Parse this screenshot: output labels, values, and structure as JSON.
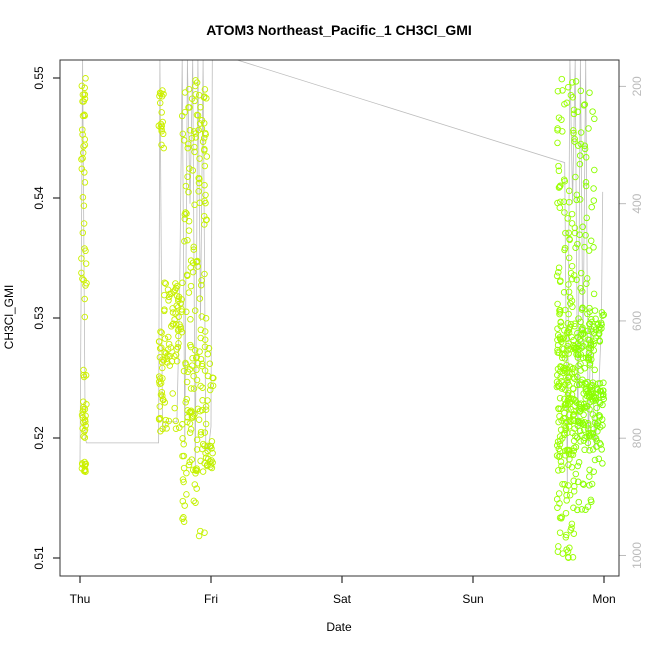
{
  "chart_data": {
    "type": "scatter",
    "title": "ATOM3 Northeast_Pacific_1 CH3Cl_GMI",
    "xlabel": "Date",
    "ylabel": "CH3Cl_GMI",
    "x_ticks": [
      "Thu",
      "Fri",
      "Sat",
      "Sun",
      "Mon"
    ],
    "ylim": [
      0.5085,
      0.5515
    ],
    "y_ticks": [
      0.51,
      0.52,
      0.53,
      0.54,
      0.55
    ],
    "y_tick_labels": [
      "0.51",
      "0.52",
      "0.53",
      "0.54",
      "0.55"
    ],
    "y2_label": "",
    "y2lim": [
      1035,
      155
    ],
    "y2_ticks": [
      200,
      400,
      600,
      800,
      1000
    ],
    "y2_tick_labels": [
      "200",
      "400",
      "600",
      "800",
      "1000"
    ],
    "grid": false,
    "legend": "none",
    "colors": {
      "marker_early": "#ccf000",
      "marker_late": "#88ff00",
      "altitude_line": "#bdbdbd",
      "frame": "#333333",
      "right_axis": "#bbbbbb"
    },
    "series": [
      {
        "marker": "open-circle",
        "segments": [
          {
            "x_start_day": 0.01,
            "x_end_day": 0.05,
            "y_min": 0.517,
            "y_max": 0.55,
            "color": "#ccf000",
            "clusters": [
              [
                0.517,
                0.518,
                12
              ],
              [
                0.52,
                0.526,
                22
              ],
              [
                0.526,
                0.54,
                14
              ],
              [
                0.54,
                0.55,
                24
              ]
            ]
          },
          {
            "x_start_day": 0.6,
            "x_end_day": 0.64,
            "y_min": 0.5205,
            "y_max": 0.549,
            "color": "#ccf000",
            "clusters": [
              [
                0.5205,
                0.529,
                28
              ],
              [
                0.544,
                0.549,
                18
              ]
            ]
          },
          {
            "x_start_day": 0.64,
            "x_end_day": 0.78,
            "y_min": 0.5205,
            "y_max": 0.533,
            "color": "#c8f000",
            "clusters": [
              [
                0.526,
                0.533,
                60
              ],
              [
                0.5205,
                0.524,
                10
              ]
            ]
          },
          {
            "x_start_day": 0.78,
            "x_end_day": 0.97,
            "y_min": 0.5115,
            "y_max": 0.55,
            "color": "#c4f200",
            "clusters": [
              [
                0.517,
                0.528,
                80
              ],
              [
                0.528,
                0.544,
                60
              ],
              [
                0.544,
                0.55,
                40
              ],
              [
                0.5115,
                0.517,
                15
              ]
            ]
          },
          {
            "x_start_day": 0.97,
            "x_end_day": 1.02,
            "y_min": 0.5175,
            "y_max": 0.528,
            "color": "#c0f000",
            "clusters": [
              [
                0.5175,
                0.52,
                16
              ],
              [
                0.523,
                0.528,
                10
              ]
            ]
          },
          {
            "x_start_day": 3.64,
            "x_end_day": 3.78,
            "y_min": 0.51,
            "y_max": 0.55,
            "color": "#99ff00",
            "clusters": [
              [
                0.518,
                0.53,
                160
              ],
              [
                0.51,
                0.518,
                40
              ],
              [
                0.53,
                0.55,
                70
              ]
            ]
          },
          {
            "x_start_day": 3.78,
            "x_end_day": 3.93,
            "y_min": 0.514,
            "y_max": 0.55,
            "color": "#8cff00",
            "clusters": [
              [
                0.52,
                0.53,
                140
              ],
              [
                0.514,
                0.52,
                25
              ],
              [
                0.53,
                0.55,
                50
              ]
            ]
          },
          {
            "x_start_day": 3.93,
            "x_end_day": 4.0,
            "y_min": 0.5175,
            "y_max": 0.531,
            "color": "#86ff00",
            "clusters": [
              [
                0.5175,
                0.525,
                40
              ],
              [
                0.528,
                0.531,
                18
              ]
            ]
          }
        ]
      },
      {
        "name": "",
        "type": "line",
        "axis": "right",
        "points_day_altitude": [
          [
            0.0,
            840
          ],
          [
            0.02,
            130
          ],
          [
            0.04,
            800
          ],
          [
            0.05,
            808
          ],
          [
            0.6,
            808
          ],
          [
            0.61,
            130
          ],
          [
            0.63,
            790
          ],
          [
            0.66,
            772
          ],
          [
            0.74,
            772
          ],
          [
            0.76,
            560
          ],
          [
            0.78,
            130
          ],
          [
            0.8,
            810
          ],
          [
            0.82,
            130
          ],
          [
            0.84,
            400
          ],
          [
            0.86,
            130
          ],
          [
            0.88,
            850
          ],
          [
            0.9,
            130
          ],
          [
            0.92,
            600
          ],
          [
            0.94,
            130
          ],
          [
            0.96,
            820
          ],
          [
            0.98,
            820
          ],
          [
            1.0,
            780
          ],
          [
            1.01,
            130
          ],
          [
            1.2,
            130
          ],
          [
            3.7,
            330
          ],
          [
            3.72,
            880
          ],
          [
            3.74,
            130
          ],
          [
            3.76,
            400
          ],
          [
            3.78,
            130
          ],
          [
            3.8,
            800
          ],
          [
            3.82,
            130
          ],
          [
            3.84,
            650
          ],
          [
            3.86,
            130
          ],
          [
            3.88,
            820
          ],
          [
            3.9,
            600
          ],
          [
            3.93,
            820
          ],
          [
            3.96,
            720
          ],
          [
            3.98,
            600
          ],
          [
            3.99,
            380
          ]
        ]
      }
    ]
  }
}
